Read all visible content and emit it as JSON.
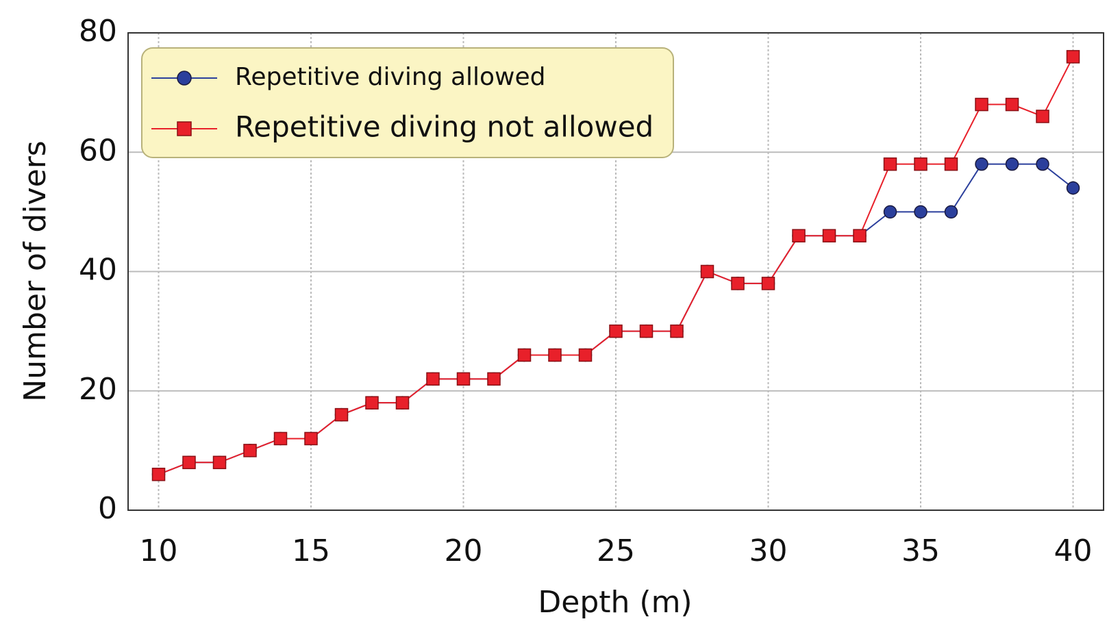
{
  "chart_data": {
    "type": "line",
    "xlabel": "Depth (m)",
    "ylabel": "Number of divers",
    "x": [
      10,
      11,
      12,
      13,
      14,
      15,
      16,
      17,
      18,
      19,
      20,
      21,
      22,
      23,
      24,
      25,
      26,
      27,
      28,
      29,
      30,
      31,
      32,
      33,
      34,
      35,
      36,
      37,
      38,
      39,
      40
    ],
    "series": [
      {
        "name": "Repetitive diving allowed",
        "color": "#2b3f9c",
        "marker": "circle",
        "values": [
          6,
          8,
          8,
          10,
          12,
          12,
          16,
          18,
          18,
          22,
          22,
          22,
          26,
          26,
          26,
          30,
          30,
          30,
          40,
          38,
          38,
          46,
          46,
          46,
          50,
          50,
          50,
          58,
          58,
          58,
          54
        ]
      },
      {
        "name": "Repetitive diving not allowed",
        "color": "#e8202a",
        "marker": "square",
        "values": [
          6,
          8,
          8,
          10,
          12,
          12,
          16,
          18,
          18,
          22,
          22,
          22,
          26,
          26,
          26,
          30,
          30,
          30,
          40,
          38,
          38,
          46,
          46,
          46,
          58,
          58,
          58,
          68,
          68,
          66,
          76
        ]
      }
    ],
    "xlim": [
      9,
      41
    ],
    "ylim": [
      0,
      80
    ],
    "xticks": [
      10,
      15,
      20,
      25,
      30,
      35,
      40
    ],
    "yticks": [
      0,
      20,
      40,
      60,
      80
    ],
    "grid": true,
    "legend": "upper left"
  }
}
